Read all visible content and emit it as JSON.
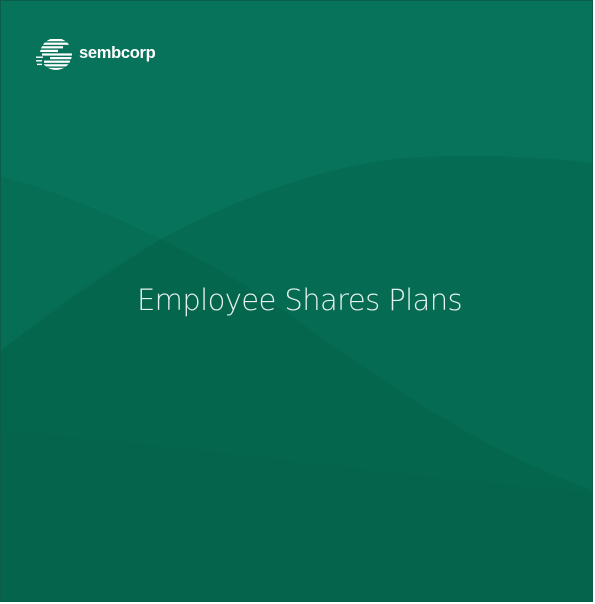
{
  "brand": {
    "name": "sembcorp",
    "logo_icon": "sembcorp-logo-icon"
  },
  "cover": {
    "title": "Employee Shares Plans"
  },
  "colors": {
    "background": "#08735a",
    "background_dark": "#06634c",
    "text": "#ffffff"
  }
}
